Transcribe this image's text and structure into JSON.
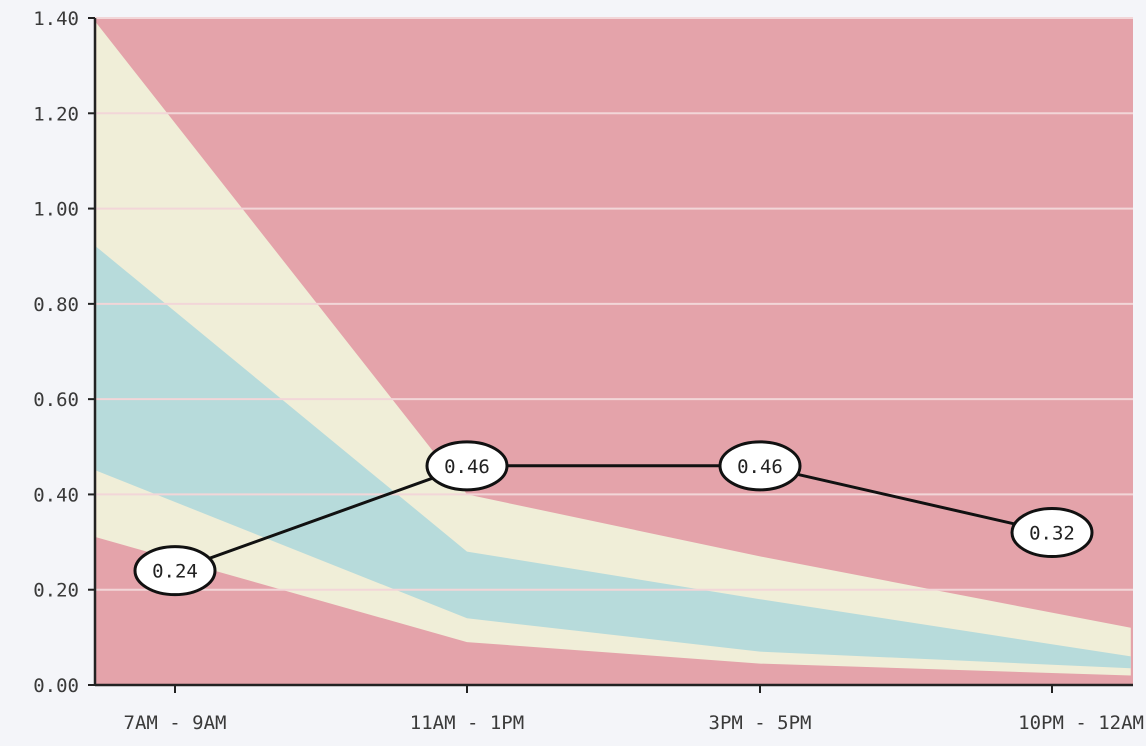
{
  "chart_data": {
    "type": "line",
    "title": "",
    "xlabel": "",
    "ylabel": "",
    "categories": [
      "7AM - 9AM",
      "11AM - 1PM",
      "3PM - 5PM",
      "10PM - 12AM"
    ],
    "series": [
      {
        "values": [
          0.24,
          0.46,
          0.46,
          0.32
        ],
        "labels": [
          "0.24",
          "0.46",
          "0.46",
          "0.32"
        ]
      }
    ],
    "ylim": [
      0,
      1.4
    ],
    "yticks": [
      "0.00",
      "0.20",
      "0.40",
      "0.60",
      "0.80",
      "1.00",
      "1.20",
      "1.40"
    ],
    "grid": true,
    "bands": {
      "description_colors": {
        "outside": "#e4a3aa",
        "yellow": "#f0eed8",
        "blue": "#b7dbdb"
      },
      "x_domain": [
        -0.27,
        3.27
      ],
      "upper_yellow": [
        [
          -0.27,
          1.39
        ],
        [
          1.0,
          0.4
        ],
        [
          2.0,
          0.27
        ],
        [
          3.27,
          0.12
        ]
      ],
      "upper_blue": [
        [
          -0.27,
          0.92
        ],
        [
          1.0,
          0.28
        ],
        [
          2.0,
          0.18
        ],
        [
          3.27,
          0.06
        ]
      ],
      "lower_blue": [
        [
          -0.27,
          0.45
        ],
        [
          1.0,
          0.14
        ],
        [
          2.0,
          0.07
        ],
        [
          3.27,
          0.035
        ]
      ],
      "lower_yellow": [
        [
          -0.27,
          0.31
        ],
        [
          1.0,
          0.09
        ],
        [
          2.0,
          0.045
        ],
        [
          3.27,
          0.02
        ]
      ]
    },
    "colors": {
      "line": "#111111",
      "label_fill": "#ffffff",
      "grid": "#f2d6d8",
      "axis": "#222222"
    }
  }
}
